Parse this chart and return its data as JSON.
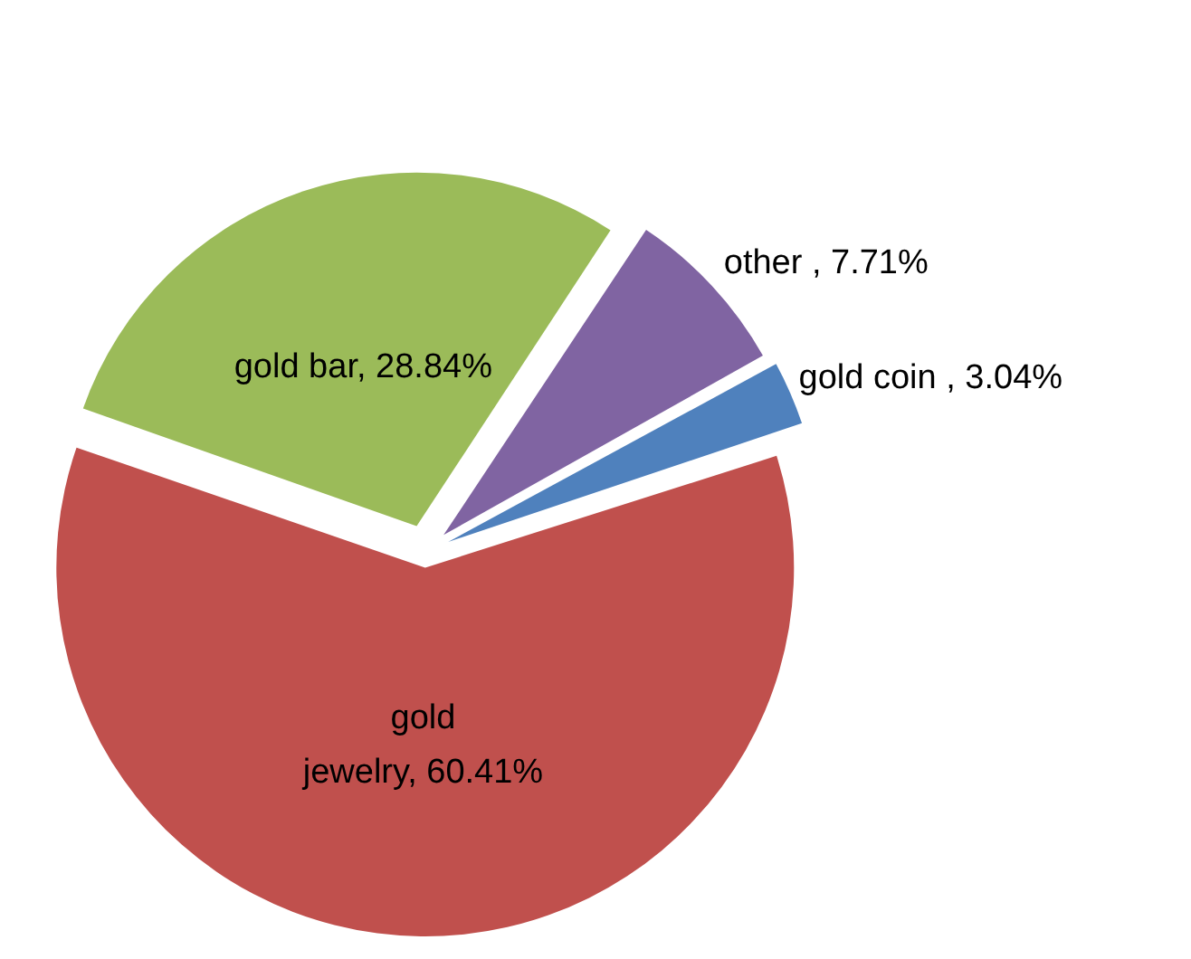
{
  "chart_data": {
    "type": "pie",
    "categories": [
      "gold coin ",
      "gold jewelry",
      "gold bar",
      "other "
    ],
    "values": [
      3.04,
      60.41,
      28.84,
      7.71
    ],
    "value_labels": [
      "3.04%",
      "60.41%",
      "28.84%",
      "7.71%"
    ],
    "colors": [
      "#4f81bd",
      "#c0504d",
      "#9bbb59",
      "#8064a2"
    ],
    "legend": false
  }
}
